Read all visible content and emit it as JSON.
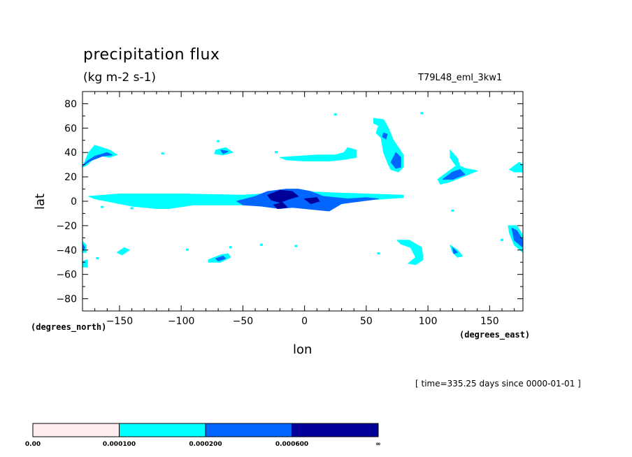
{
  "chart_data": {
    "type": "heatmap",
    "title": "precipitation flux",
    "units": "(kg m-2 s-1)",
    "run_label": "T79L48_eml_3kw1",
    "xlabel": "lon",
    "ylabel": "lat",
    "x_units": "(degrees_east)",
    "y_units": "(degrees_north)",
    "xlim": [
      -180,
      177
    ],
    "ylim": [
      -90,
      90
    ],
    "x_ticks": [
      -150,
      -100,
      -50,
      0,
      50,
      100,
      150
    ],
    "y_ticks": [
      80,
      60,
      40,
      20,
      0,
      -20,
      -40,
      -60,
      -80
    ],
    "time_note": "[ time=335.25 days since 0000-01-01 ]",
    "colorbar": {
      "levels": [
        "0.00",
        "0.000100",
        "0.000200",
        "0.000600",
        "∞"
      ],
      "colors": [
        "#ffeeee",
        "#00ffff",
        "#0066ff",
        "#000099"
      ]
    },
    "regions": [
      {
        "level": 1,
        "points": [
          [
            -175,
            4
          ],
          [
            -150,
            6
          ],
          [
            -100,
            6
          ],
          [
            -50,
            5
          ],
          [
            -20,
            7
          ],
          [
            0,
            8
          ],
          [
            20,
            7
          ],
          [
            50,
            6
          ],
          [
            80,
            5
          ],
          [
            80,
            3
          ],
          [
            50,
            1
          ],
          [
            30,
            -2
          ],
          [
            0,
            -3
          ],
          [
            -20,
            -3
          ],
          [
            -50,
            -3
          ],
          [
            -90,
            -3
          ],
          [
            -110,
            -6
          ],
          [
            -120,
            -6
          ],
          [
            -140,
            -4
          ],
          [
            -150,
            -2
          ],
          [
            -170,
            2
          ]
        ]
      },
      {
        "level": 2,
        "points": [
          [
            -55,
            0
          ],
          [
            -40,
            4
          ],
          [
            -30,
            8
          ],
          [
            -15,
            10
          ],
          [
            -5,
            10
          ],
          [
            5,
            8
          ],
          [
            15,
            4
          ],
          [
            35,
            2
          ],
          [
            50,
            3
          ],
          [
            60,
            2
          ],
          [
            45,
            0
          ],
          [
            30,
            -2
          ],
          [
            20,
            -8
          ],
          [
            0,
            -6
          ],
          [
            -10,
            -5
          ],
          [
            -20,
            -6
          ],
          [
            -35,
            -4
          ],
          [
            -50,
            -3
          ]
        ]
      },
      {
        "level": 3,
        "points": [
          [
            -30,
            5
          ],
          [
            -20,
            9
          ],
          [
            -10,
            8
          ],
          [
            -5,
            4
          ],
          [
            -12,
            2
          ],
          [
            -20,
            -1
          ],
          [
            -27,
            1
          ]
        ]
      },
      {
        "level": 3,
        "points": [
          [
            -25,
            -3
          ],
          [
            -18,
            -1
          ],
          [
            -14,
            -5
          ],
          [
            -22,
            -6
          ]
        ]
      },
      {
        "level": 3,
        "points": [
          [
            0,
            2
          ],
          [
            10,
            3
          ],
          [
            12,
            0
          ],
          [
            5,
            -2
          ]
        ]
      },
      {
        "level": 1,
        "points": [
          [
            -180,
            28
          ],
          [
            -175,
            40
          ],
          [
            -170,
            46
          ],
          [
            -158,
            42
          ],
          [
            -152,
            38
          ],
          [
            -158,
            36
          ],
          [
            -168,
            38
          ],
          [
            -176,
            30
          ]
        ]
      },
      {
        "level": 2,
        "points": [
          [
            -180,
            29
          ],
          [
            -176,
            33
          ],
          [
            -170,
            37
          ],
          [
            -160,
            40
          ],
          [
            -156,
            38
          ],
          [
            -164,
            37
          ],
          [
            -174,
            33
          ]
        ]
      },
      {
        "level": 1,
        "points": [
          [
            -72,
            42
          ],
          [
            -64,
            44
          ],
          [
            -58,
            40
          ],
          [
            -66,
            38
          ],
          [
            -73,
            39
          ]
        ]
      },
      {
        "level": 2,
        "points": [
          [
            -68,
            42
          ],
          [
            -62,
            41
          ],
          [
            -66,
            39
          ]
        ]
      },
      {
        "level": 1,
        "points": [
          [
            -20,
            36
          ],
          [
            -5,
            37
          ],
          [
            10,
            38
          ],
          [
            25,
            38
          ],
          [
            32,
            40
          ],
          [
            35,
            44
          ],
          [
            42,
            42
          ],
          [
            42,
            36
          ],
          [
            30,
            34
          ],
          [
            20,
            33
          ],
          [
            0,
            33
          ],
          [
            -15,
            34
          ]
        ]
      },
      {
        "level": 1,
        "points": [
          [
            56,
            68
          ],
          [
            64,
            67
          ],
          [
            68,
            60
          ],
          [
            72,
            50
          ],
          [
            76,
            44
          ],
          [
            80,
            38
          ],
          [
            80,
            28
          ],
          [
            76,
            24
          ],
          [
            70,
            26
          ],
          [
            68,
            30
          ],
          [
            64,
            40
          ],
          [
            62,
            52
          ],
          [
            58,
            56
          ],
          [
            60,
            62
          ],
          [
            56,
            64
          ]
        ]
      },
      {
        "level": 2,
        "points": [
          [
            74,
            40
          ],
          [
            78,
            36
          ],
          [
            78,
            28
          ],
          [
            74,
            27
          ],
          [
            70,
            32
          ]
        ]
      },
      {
        "level": 2,
        "points": [
          [
            64,
            56
          ],
          [
            67,
            55
          ],
          [
            66,
            51
          ],
          [
            63,
            53
          ]
        ]
      },
      {
        "level": 1,
        "points": [
          [
            108,
            18
          ],
          [
            116,
            24
          ],
          [
            124,
            30
          ],
          [
            130,
            27
          ],
          [
            140,
            25
          ],
          [
            128,
            20
          ],
          [
            118,
            16
          ],
          [
            110,
            14
          ]
        ]
      },
      {
        "level": 2,
        "points": [
          [
            112,
            18
          ],
          [
            120,
            24
          ],
          [
            126,
            26
          ],
          [
            130,
            22
          ],
          [
            120,
            18
          ]
        ]
      },
      {
        "level": 1,
        "points": [
          [
            118,
            42
          ],
          [
            124,
            35
          ],
          [
            126,
            28
          ],
          [
            122,
            30
          ],
          [
            118,
            36
          ]
        ]
      },
      {
        "level": 1,
        "points": [
          [
            166,
            26
          ],
          [
            174,
            32
          ],
          [
            177,
            30
          ],
          [
            177,
            24
          ],
          [
            170,
            24
          ]
        ]
      },
      {
        "level": 1,
        "points": [
          [
            165,
            -20
          ],
          [
            172,
            -20
          ],
          [
            177,
            -28
          ],
          [
            177,
            -42
          ],
          [
            170,
            -36
          ],
          [
            166,
            -26
          ]
        ]
      },
      {
        "level": 2,
        "points": [
          [
            168,
            -22
          ],
          [
            172,
            -24
          ],
          [
            177,
            -32
          ],
          [
            177,
            -38
          ],
          [
            170,
            -32
          ]
        ]
      },
      {
        "level": 1,
        "points": [
          [
            -180,
            -33
          ],
          [
            -177,
            -36
          ],
          [
            -177,
            -42
          ],
          [
            -180,
            -42
          ]
        ]
      },
      {
        "level": 2,
        "points": [
          [
            -180,
            -35
          ],
          [
            -178,
            -38
          ],
          [
            -180,
            -41
          ]
        ]
      },
      {
        "level": 1,
        "points": [
          [
            75,
            -32
          ],
          [
            85,
            -32
          ],
          [
            95,
            -38
          ],
          [
            96,
            -48
          ],
          [
            90,
            -52
          ],
          [
            84,
            -51
          ],
          [
            90,
            -46
          ],
          [
            86,
            -38
          ],
          [
            78,
            -35
          ]
        ]
      },
      {
        "level": 1,
        "points": [
          [
            118,
            -36
          ],
          [
            124,
            -40
          ],
          [
            128,
            -45
          ],
          [
            124,
            -46
          ],
          [
            120,
            -42
          ]
        ]
      },
      {
        "level": 2,
        "points": [
          [
            120,
            -38
          ],
          [
            124,
            -42
          ],
          [
            121,
            -43
          ]
        ]
      },
      {
        "level": 1,
        "points": [
          [
            -78,
            -48
          ],
          [
            -68,
            -44
          ],
          [
            -62,
            -43
          ],
          [
            -60,
            -46
          ],
          [
            -68,
            -50
          ],
          [
            -78,
            -50
          ]
        ]
      },
      {
        "level": 2,
        "points": [
          [
            -72,
            -47
          ],
          [
            -66,
            -45
          ],
          [
            -64,
            -47
          ],
          [
            -70,
            -49
          ]
        ]
      },
      {
        "level": 1,
        "points": [
          [
            -152,
            -42
          ],
          [
            -146,
            -38
          ],
          [
            -142,
            -40
          ],
          [
            -148,
            -44
          ]
        ]
      },
      {
        "level": 1,
        "points": [
          [
            -182,
            -50
          ],
          [
            -176,
            -48
          ],
          [
            -176,
            -54
          ],
          [
            -182,
            -54
          ]
        ]
      }
    ],
    "spots": [
      [
        -115,
        39
      ],
      [
        -70,
        49
      ],
      [
        -23,
        40
      ],
      [
        25,
        71
      ],
      [
        -140,
        -6
      ],
      [
        -164,
        -5
      ],
      [
        -130,
        -2
      ],
      [
        -60,
        -38
      ],
      [
        -35,
        -36
      ],
      [
        -7,
        -37
      ],
      [
        60,
        -43
      ],
      [
        120,
        -8
      ],
      [
        160,
        -32
      ],
      [
        -168,
        -47
      ],
      [
        95,
        72
      ],
      [
        -95,
        -40
      ]
    ]
  }
}
